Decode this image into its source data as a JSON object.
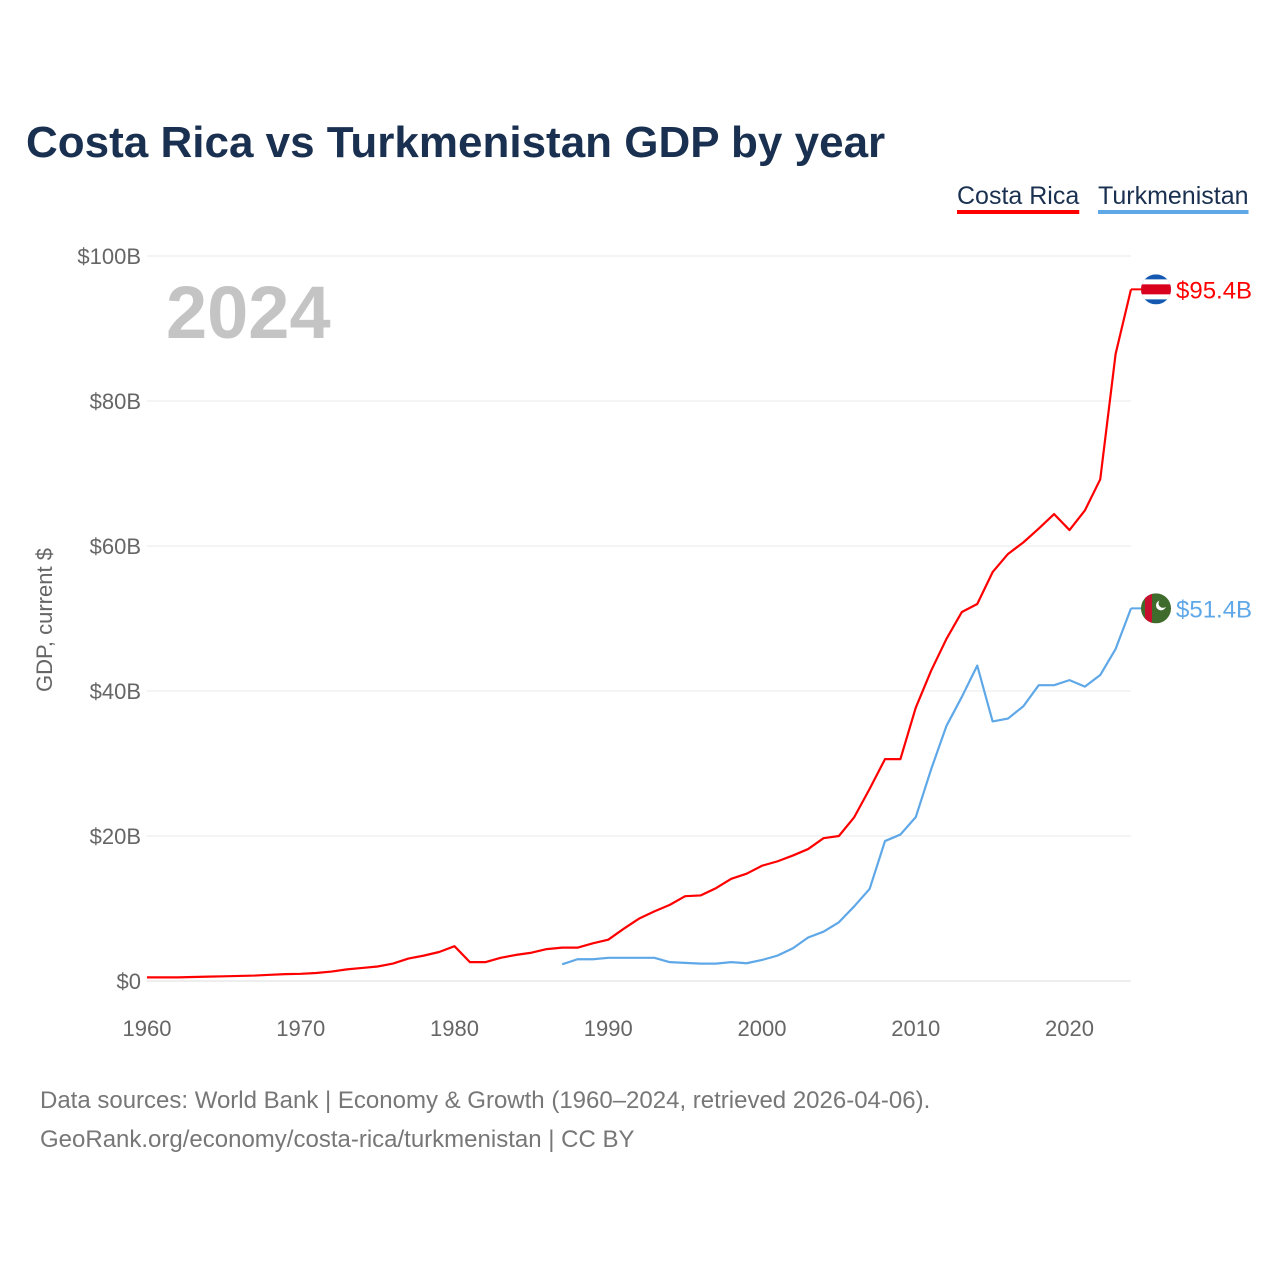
{
  "chart_data": {
    "type": "line",
    "title": "Costa Rica vs Turkmenistan GDP by year",
    "xlabel": "",
    "ylabel": "GDP, current $",
    "xlim": [
      1960,
      2024
    ],
    "ylim": [
      0,
      100
    ],
    "x_ticks": [
      1960,
      1970,
      1980,
      1990,
      2000,
      2010,
      2020
    ],
    "y_ticks": [
      0,
      20,
      40,
      60,
      80,
      100
    ],
    "y_tick_labels": [
      "$0",
      "$20B",
      "$40B",
      "$60B",
      "$80B",
      "$100B"
    ],
    "grid": true,
    "legend_position": "top-right",
    "year_label": "2024",
    "series": [
      {
        "name": "Costa Rica",
        "color": "#ff0000",
        "end_label": "$95.4B",
        "flag": "costa-rica-flag",
        "start_year": 1960,
        "values": [
          0.5,
          0.5,
          0.5,
          0.55,
          0.6,
          0.65,
          0.7,
          0.75,
          0.85,
          0.95,
          0.99,
          1.1,
          1.3,
          1.6,
          1.8,
          2.0,
          2.4,
          3.1,
          3.5,
          4.0,
          4.8,
          2.6,
          2.6,
          3.2,
          3.6,
          3.9,
          4.4,
          4.6,
          4.6,
          5.2,
          5.7,
          7.2,
          8.6,
          9.6,
          10.5,
          11.7,
          11.8,
          12.8,
          14.1,
          14.8,
          15.9,
          16.5,
          17.3,
          18.2,
          19.7,
          20.0,
          22.6,
          26.5,
          30.6,
          30.6,
          37.7,
          42.8,
          47.2,
          50.9,
          52.0,
          56.4,
          58.9,
          60.5,
          62.4,
          64.4,
          62.2,
          64.9,
          69.2,
          86.5,
          95.4
        ]
      },
      {
        "name": "Turkmenistan",
        "color": "#5fa8e8",
        "end_label": "$51.4B",
        "flag": "turkmenistan-flag",
        "start_year": 1987,
        "values": [
          2.3,
          3.0,
          3.0,
          3.2,
          3.2,
          3.2,
          3.2,
          2.6,
          2.5,
          2.4,
          2.4,
          2.6,
          2.45,
          2.9,
          3.5,
          4.5,
          6.0,
          6.8,
          8.1,
          10.3,
          12.7,
          19.3,
          20.2,
          22.6,
          29.2,
          35.2,
          39.2,
          43.5,
          35.8,
          36.2,
          37.9,
          40.8,
          40.8,
          41.5,
          40.6,
          42.2,
          45.8,
          51.4
        ]
      }
    ]
  },
  "footer": {
    "line1": "Data sources: World Bank | Economy & Growth (1960–2024, retrieved 2026-04-06).",
    "line2": "GeoRank.org/economy/costa-rica/turkmenistan | CC BY"
  }
}
